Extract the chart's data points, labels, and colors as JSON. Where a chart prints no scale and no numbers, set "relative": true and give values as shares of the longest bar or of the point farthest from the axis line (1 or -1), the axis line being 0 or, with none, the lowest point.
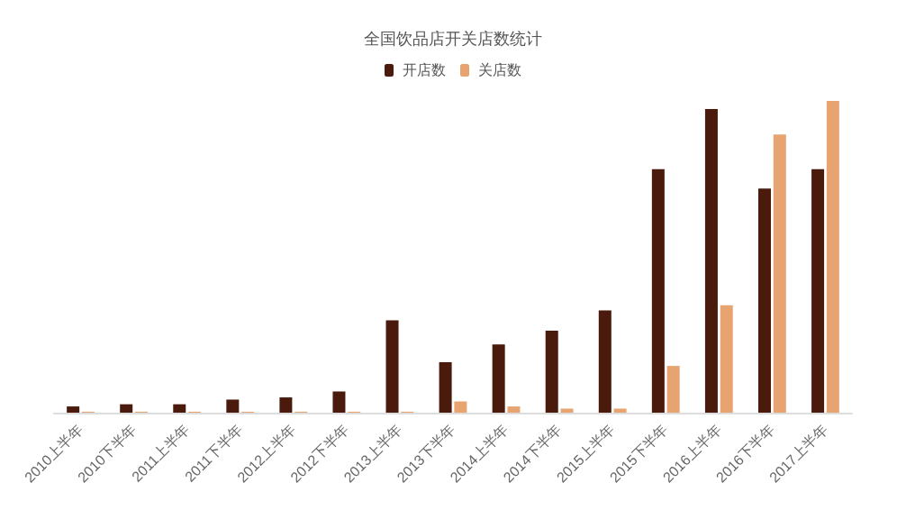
{
  "chart_data": {
    "type": "bar",
    "title": "全国饮品店开关店数统计",
    "relative": true,
    "legend": "top",
    "categories": [
      "2010上半年",
      "2010下半年",
      "2011上半年",
      "2011下半年",
      "2012上半年",
      "2012下半年",
      "2013上半年",
      "2013下半年",
      "2014上半年",
      "2014下半年",
      "2015上半年",
      "2015下半年",
      "2016上半年",
      "2016下半年",
      "2017上半年"
    ],
    "series": [
      {
        "name": "开店数",
        "color": "#4a1a0c",
        "values": [
          0.02,
          0.027,
          0.027,
          0.042,
          0.049,
          0.068,
          0.296,
          0.162,
          0.219,
          0.263,
          0.328,
          0.781,
          0.974,
          0.719,
          0.781
        ]
      },
      {
        "name": "关店数",
        "color": "#e8a470",
        "values": [
          0.003,
          0.003,
          0.003,
          0.003,
          0.003,
          0.003,
          0.003,
          0.036,
          0.02,
          0.013,
          0.013,
          0.15,
          0.345,
          0.892,
          1
        ]
      }
    ]
  }
}
